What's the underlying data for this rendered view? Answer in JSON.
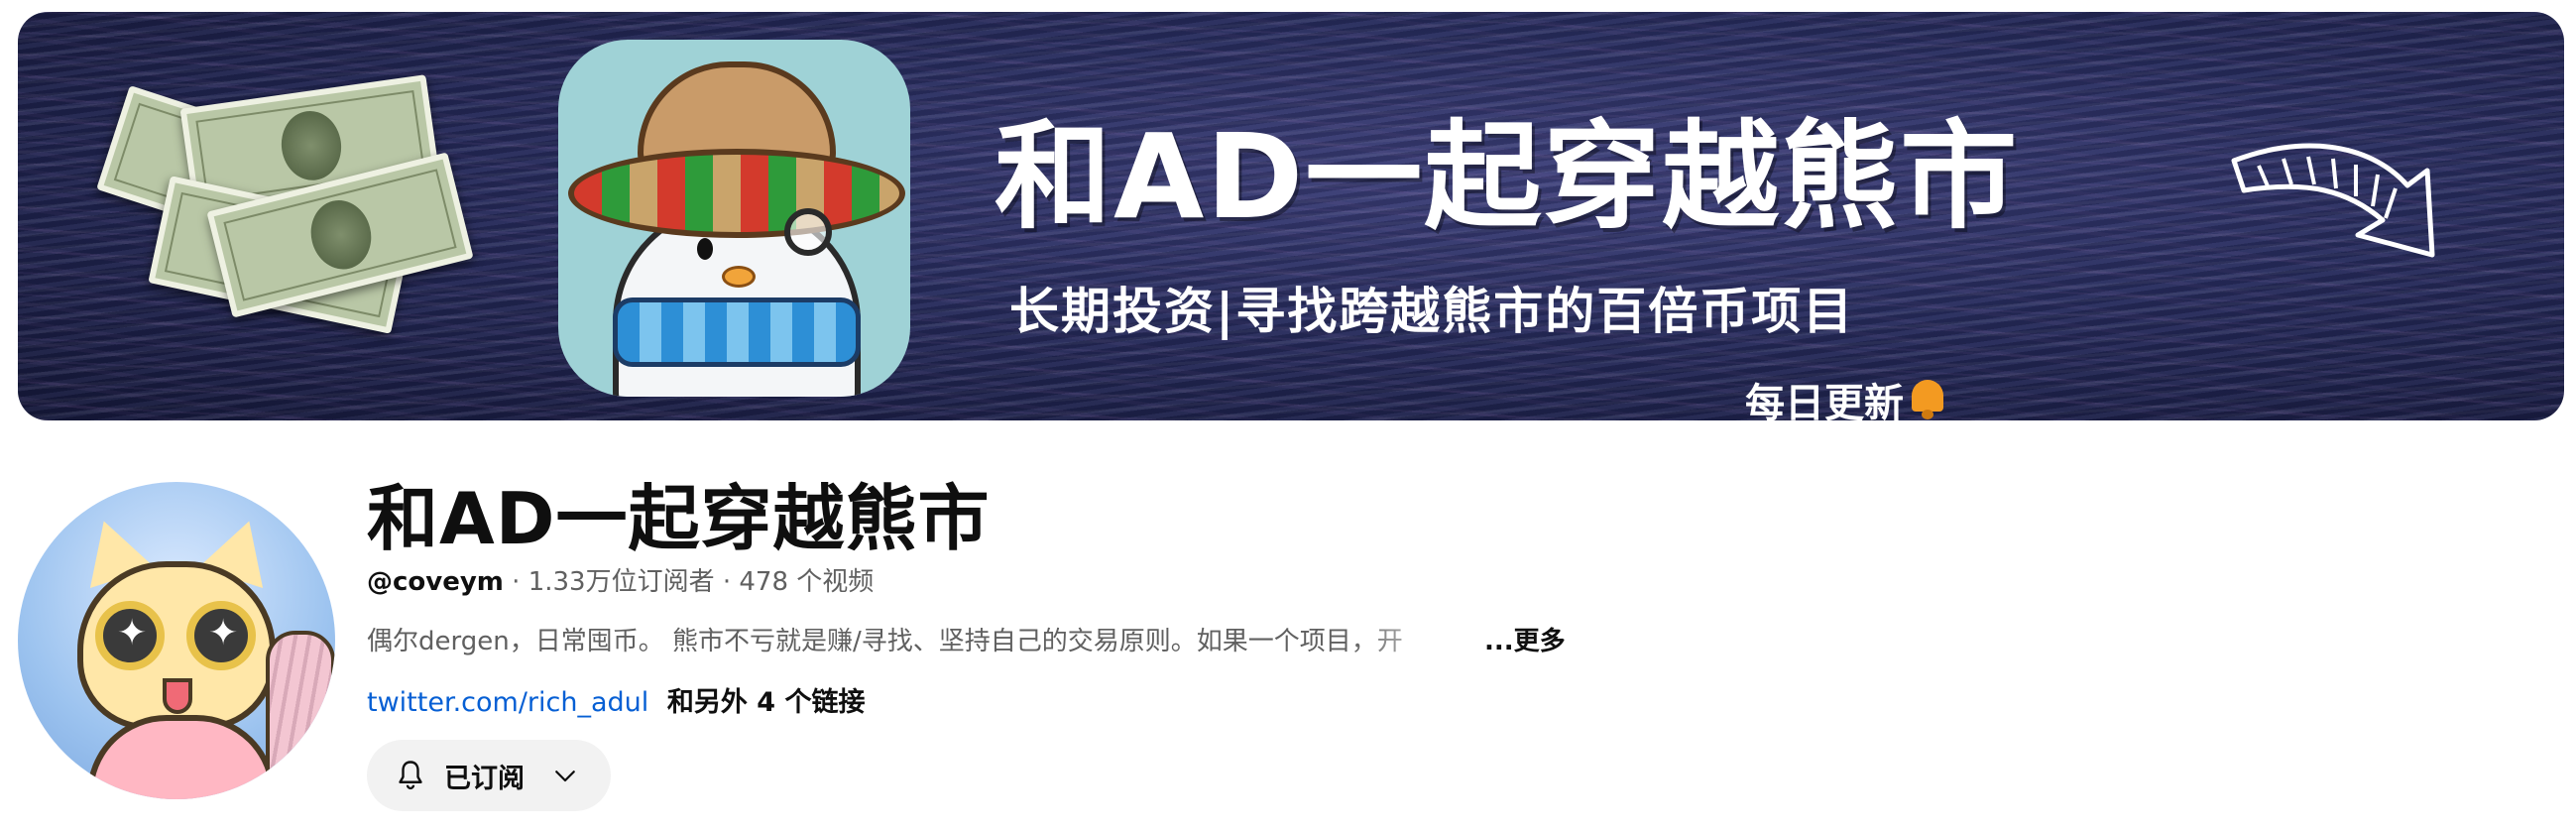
{
  "banner": {
    "title": "和AD一起穿越熊市",
    "subtitle": "长期投资|寻找跨越熊市的百倍币项目",
    "daily": "每日更新"
  },
  "channel": {
    "name": "和AD一起穿越熊市",
    "handle": "@coveym",
    "stats": " · 1.33万位订阅者 · 478 个视频",
    "description": "偶尔dergen，日常囤币。 熊市不亏就是赚/寻找、坚持自己的交易原则。如果一个项目，开",
    "more_label": "...更多",
    "link_url": "twitter.com/rich_adul",
    "link_others": "和另外 4 个链接"
  },
  "subscribe": {
    "label": "已订阅",
    "icon": "bell-icon",
    "dropdown_icon": "chevron-down-icon",
    "bg_color": "#f2f2f2"
  },
  "colors": {
    "link": "#065fd4",
    "secondary_text": "#606060",
    "primary_text": "#0f0f0f"
  }
}
